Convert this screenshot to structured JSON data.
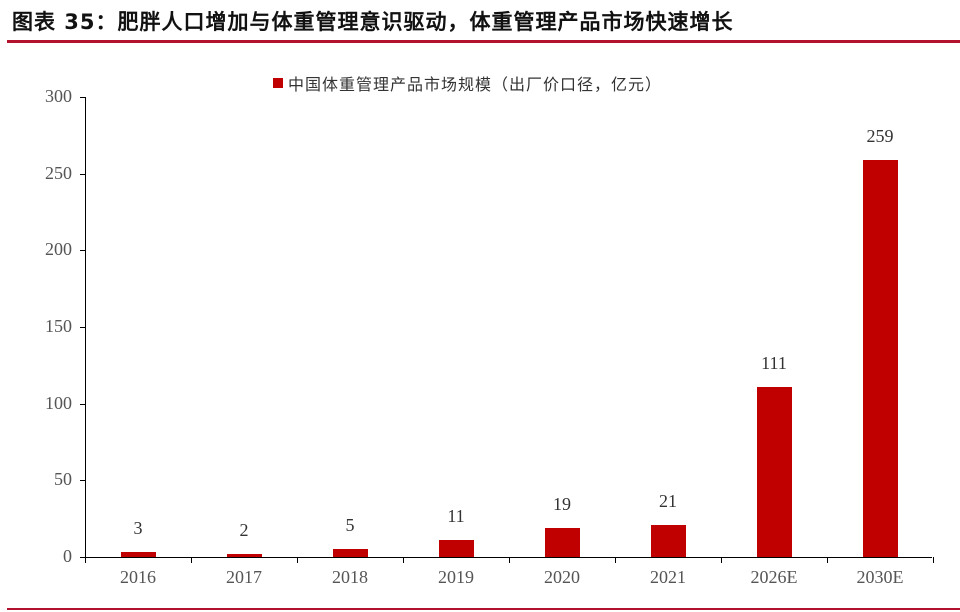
{
  "header": {
    "title": "图表 35：肥胖人口增加与体重管理意识驱动，体重管理产品市场快速增长"
  },
  "legend": {
    "label": "中国体重管理产品市场规模（出厂价口径，亿元）",
    "color": "#c00000"
  },
  "colors": {
    "bar": "#c00000",
    "rule": "#b3122e"
  },
  "chart_data": {
    "type": "bar",
    "title": "图表 35：肥胖人口增加与体重管理意识驱动，体重管理产品市场快速增长",
    "categories": [
      "2016",
      "2017",
      "2018",
      "2019",
      "2020",
      "2021",
      "2026E",
      "2030E"
    ],
    "series": [
      {
        "name": "中国体重管理产品市场规模（出厂价口径，亿元）",
        "values": [
          3,
          2,
          5,
          11,
          19,
          21,
          111,
          259
        ]
      }
    ],
    "value_labels": [
      "3",
      "2",
      "5",
      "11",
      "19",
      "21",
      "111",
      "259"
    ],
    "xlabel": "",
    "ylabel": "",
    "ylim": [
      0,
      300
    ],
    "yticks": [
      "0",
      "50",
      "100",
      "150",
      "200",
      "250",
      "300"
    ],
    "grid": false,
    "legend_position": "top"
  }
}
